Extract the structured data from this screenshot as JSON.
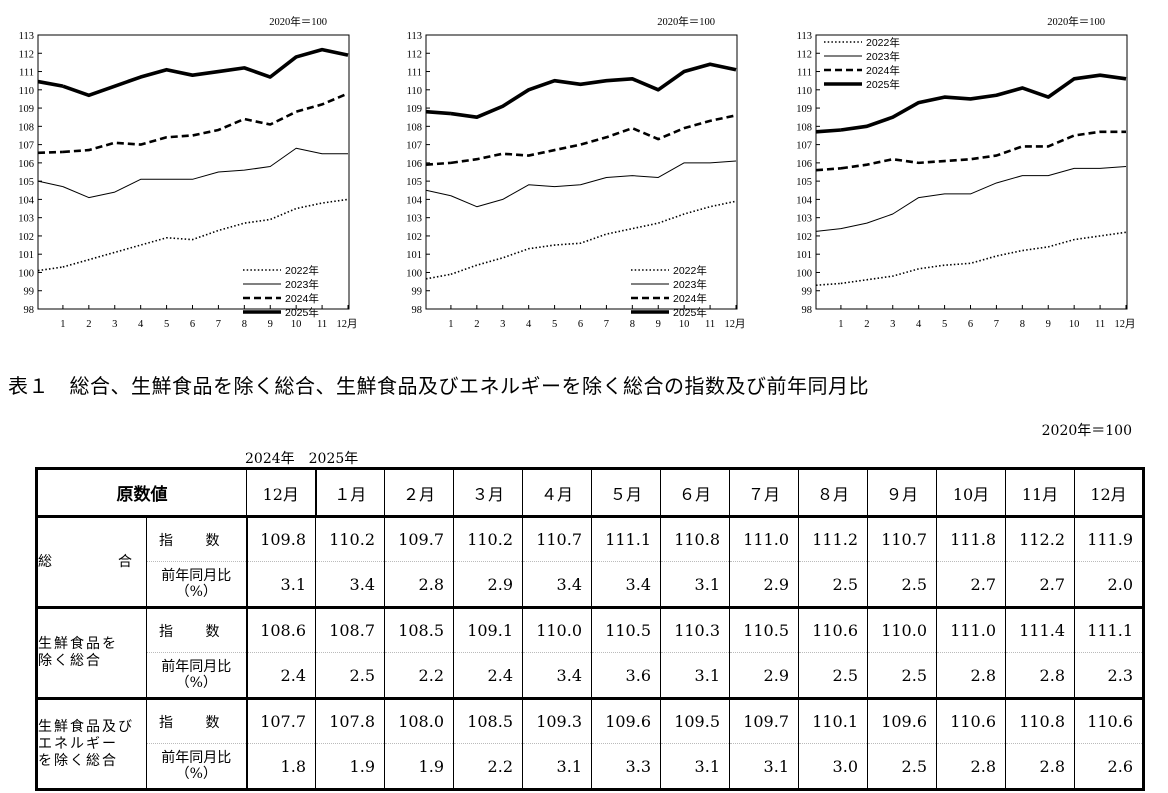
{
  "chart_data": [
    {
      "type": "line",
      "id": "total",
      "base_label": "2020年＝100",
      "categories": [
        "1",
        "2",
        "3",
        "4",
        "5",
        "6",
        "7",
        "8",
        "9",
        "10",
        "11",
        "12月"
      ],
      "ylim": [
        98,
        113
      ],
      "yticks": [
        "98",
        "99",
        "100",
        "101",
        "102",
        "103",
        "104",
        "105",
        "106",
        "107",
        "108",
        "109",
        "110",
        "111",
        "112",
        "113"
      ],
      "legend_position": "bottom-right",
      "series": [
        {
          "name": "2022年",
          "style": "dotted",
          "values": [
            100.3,
            100.7,
            101.1,
            101.5,
            101.9,
            101.8,
            102.3,
            102.7,
            102.9,
            103.5,
            103.8,
            104.0
          ]
        },
        {
          "name": "2023年",
          "style": "thin",
          "values": [
            104.7,
            104.1,
            104.4,
            105.1,
            105.1,
            105.1,
            105.5,
            105.6,
            105.8,
            106.8,
            106.5,
            106.5
          ]
        },
        {
          "name": "2024年",
          "style": "dashed",
          "values": [
            106.6,
            106.7,
            107.1,
            107.0,
            107.4,
            107.5,
            107.8,
            108.4,
            108.1,
            108.8,
            109.2,
            109.8
          ]
        },
        {
          "name": "2025年",
          "style": "thick",
          "values": [
            110.2,
            109.7,
            110.2,
            110.7,
            111.1,
            110.8,
            111.0,
            111.2,
            110.7,
            111.8,
            112.2,
            111.9
          ]
        }
      ]
    },
    {
      "type": "line",
      "id": "excl-fresh",
      "base_label": "2020年＝100",
      "categories": [
        "1",
        "2",
        "3",
        "4",
        "5",
        "6",
        "7",
        "8",
        "9",
        "10",
        "11",
        "12月"
      ],
      "ylim": [
        98,
        113
      ],
      "yticks": [
        "98",
        "99",
        "100",
        "101",
        "102",
        "103",
        "104",
        "105",
        "106",
        "107",
        "108",
        "109",
        "110",
        "111",
        "112",
        "113"
      ],
      "legend_position": "bottom-right",
      "series": [
        {
          "name": "2022年",
          "style": "dotted",
          "values": [
            99.9,
            100.4,
            100.8,
            101.3,
            101.5,
            101.6,
            102.1,
            102.4,
            102.7,
            103.2,
            103.6,
            103.9
          ]
        },
        {
          "name": "2023年",
          "style": "thin",
          "values": [
            104.2,
            103.6,
            104.0,
            104.8,
            104.7,
            104.8,
            105.2,
            105.3,
            105.2,
            106.0,
            106.0,
            106.1
          ]
        },
        {
          "name": "2024年",
          "style": "dashed",
          "values": [
            106.0,
            106.2,
            106.5,
            106.4,
            106.7,
            107.0,
            107.4,
            107.9,
            107.3,
            107.9,
            108.3,
            108.6
          ]
        },
        {
          "name": "2025年",
          "style": "thick",
          "values": [
            108.7,
            108.5,
            109.1,
            110.0,
            110.5,
            110.3,
            110.5,
            110.6,
            110.0,
            111.0,
            111.4,
            111.1
          ]
        }
      ]
    },
    {
      "type": "line",
      "id": "excl-fresh-energy",
      "base_label": "2020年＝100",
      "categories": [
        "1",
        "2",
        "3",
        "4",
        "5",
        "6",
        "7",
        "8",
        "9",
        "10",
        "11",
        "12月"
      ],
      "ylim": [
        98,
        113
      ],
      "yticks": [
        "98",
        "99",
        "100",
        "101",
        "102",
        "103",
        "104",
        "105",
        "106",
        "107",
        "108",
        "109",
        "110",
        "111",
        "112",
        "113"
      ],
      "legend_position": "top-left",
      "series": [
        {
          "name": "2022年",
          "style": "dotted",
          "values": [
            99.4,
            99.6,
            99.8,
            100.2,
            100.4,
            100.5,
            100.9,
            101.2,
            101.4,
            101.8,
            102.0,
            102.2
          ]
        },
        {
          "name": "2023年",
          "style": "thin",
          "values": [
            102.4,
            102.7,
            103.2,
            104.1,
            104.3,
            104.3,
            104.9,
            105.3,
            105.3,
            105.7,
            105.7,
            105.8
          ]
        },
        {
          "name": "2024年",
          "style": "dashed",
          "values": [
            105.7,
            105.9,
            106.2,
            106.0,
            106.1,
            106.2,
            106.4,
            106.9,
            106.9,
            107.5,
            107.7,
            107.7
          ]
        },
        {
          "name": "2025年",
          "style": "thick",
          "values": [
            107.8,
            108.0,
            108.5,
            109.3,
            109.6,
            109.5,
            109.7,
            110.1,
            109.6,
            110.6,
            110.8,
            110.6
          ]
        }
      ]
    }
  ],
  "table": {
    "title": "表１　総合、生鮮食品を除く総合、生鮮食品及びエネルギーを除く総合の指数及び前年同月比",
    "base": "2020年＝100",
    "year_labels": [
      "2024年",
      "2025年"
    ],
    "header_label": "原数値",
    "months": [
      "12月",
      "１月",
      "２月",
      "３月",
      "４月",
      "５月",
      "６月",
      "７月",
      "８月",
      "９月",
      "10月",
      "11月",
      "12月"
    ],
    "index_label": "指 数",
    "yoy_label_line1": "前年同月比",
    "yoy_label_line2": "（%）",
    "rows": [
      {
        "label_lines": [
          "総　　　　合"
        ],
        "index": [
          "109.8",
          "110.2",
          "109.7",
          "110.2",
          "110.7",
          "111.1",
          "110.8",
          "111.0",
          "111.2",
          "110.7",
          "111.8",
          "112.2",
          "111.9"
        ],
        "yoy": [
          "3.1",
          "3.4",
          "2.8",
          "2.9",
          "3.4",
          "3.4",
          "3.1",
          "2.9",
          "2.5",
          "2.5",
          "2.7",
          "2.7",
          "2.0"
        ]
      },
      {
        "label_lines": [
          "生鮮食品を",
          "除く総合"
        ],
        "index": [
          "108.6",
          "108.7",
          "108.5",
          "109.1",
          "110.0",
          "110.5",
          "110.3",
          "110.5",
          "110.6",
          "110.0",
          "111.0",
          "111.4",
          "111.1"
        ],
        "yoy": [
          "2.4",
          "2.5",
          "2.2",
          "2.4",
          "3.4",
          "3.6",
          "3.1",
          "2.9",
          "2.5",
          "2.5",
          "2.8",
          "2.8",
          "2.3"
        ]
      },
      {
        "label_lines": [
          "生鮮食品及び",
          "エネルギー",
          "を除く総合"
        ],
        "index": [
          "107.7",
          "107.8",
          "108.0",
          "108.5",
          "109.3",
          "109.6",
          "109.5",
          "109.7",
          "110.1",
          "109.6",
          "110.6",
          "110.8",
          "110.6"
        ],
        "yoy": [
          "1.8",
          "1.9",
          "1.9",
          "2.2",
          "3.1",
          "3.3",
          "3.1",
          "3.1",
          "3.0",
          "2.5",
          "2.8",
          "2.8",
          "2.6"
        ]
      }
    ]
  }
}
